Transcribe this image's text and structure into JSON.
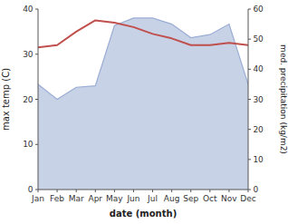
{
  "chart_data": {
    "type": "line",
    "xlabel": "date (month)",
    "ylabel": "max temp (C)",
    "y2label": "med. precipitation (kg/m2)",
    "categories": [
      "Jan",
      "Feb",
      "Mar",
      "Apr",
      "May",
      "Jun",
      "Jul",
      "Aug",
      "Sep",
      "Oct",
      "Nov",
      "Dec"
    ],
    "series": [
      {
        "type": "area",
        "axis": "y2",
        "color": "#9badd4",
        "values": [
          35.0,
          30.0,
          34.0,
          34.5,
          54.5,
          57.0,
          57.0,
          55.0,
          50.5,
          51.5,
          55.0,
          35.0
        ]
      },
      {
        "type": "line",
        "color": "#c0504d",
        "values": [
          31.5,
          32.0,
          35.0,
          37.5,
          37.0,
          36.0,
          34.5,
          33.5,
          32.0,
          32.0,
          32.5,
          32.0
        ]
      }
    ],
    "ylim": [
      0,
      40
    ],
    "yticks": [
      0,
      10,
      20,
      30,
      40
    ],
    "y2lim": [
      0,
      60
    ],
    "y2ticks": [
      0,
      10,
      20,
      30,
      40,
      50,
      60
    ],
    "grid": false
  }
}
